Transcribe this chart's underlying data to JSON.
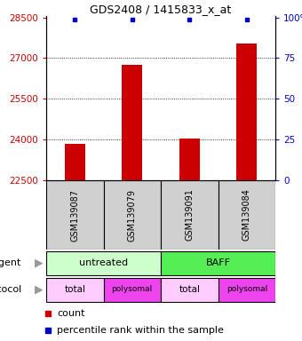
{
  "title": "GDS2408 / 1415833_x_at",
  "samples": [
    "GSM139087",
    "GSM139079",
    "GSM139091",
    "GSM139084"
  ],
  "counts": [
    23830,
    26750,
    24050,
    27550
  ],
  "y_min": 22500,
  "y_max": 28500,
  "y_ticks": [
    22500,
    24000,
    25500,
    27000,
    28500
  ],
  "y2_ticks": [
    0,
    25,
    50,
    75,
    100
  ],
  "bar_color": "#cc0000",
  "bar_width": 0.35,
  "percentile_color": "#0000cc",
  "label_color_left": "#cc0000",
  "label_color_right": "#0000cc",
  "bar_bottom": 22500,
  "agent_labels": [
    "untreated",
    "BAFF"
  ],
  "agent_colors": [
    "#ccffcc",
    "#55ee55"
  ],
  "protocol_labels": [
    "total",
    "polysomal",
    "total",
    "polysomal"
  ],
  "protocol_colors": [
    "#ffccff",
    "#ee44ee",
    "#ffccff",
    "#ee44ee"
  ],
  "grid_dotted_ticks": [
    24000,
    25500,
    27000
  ],
  "legend_count_color": "#cc0000",
  "legend_percentile_color": "#0000cc"
}
